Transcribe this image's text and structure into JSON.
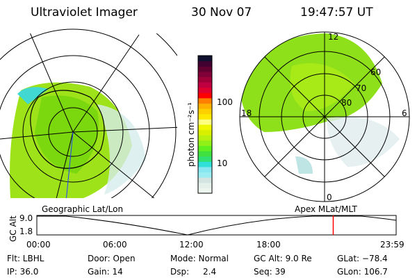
{
  "header": {
    "instrument": "Ultraviolet Imager",
    "date": "30 Nov 07",
    "time": "19:47:57 UT"
  },
  "colorbar": {
    "label": "photon cm⁻²s⁻¹",
    "ticks": [
      "100",
      "10"
    ],
    "colors": [
      "#eef6f0",
      "#e4f0ea",
      "#d4e4e0",
      "#9aeef2",
      "#88e6f0",
      "#30e0d8",
      "#30e070",
      "#40e040",
      "#60f020",
      "#90f018",
      "#b8f010",
      "#d8f000",
      "#f0f800",
      "#ffff80",
      "#ffe800",
      "#ffd000",
      "#ffb000",
      "#ff8000",
      "#ff0000",
      "#e00030",
      "#c00040",
      "#a00038",
      "#800038",
      "#600030",
      "#400030",
      "#101030"
    ]
  },
  "left_map": {
    "label": "Geographic Lat/Lon"
  },
  "right_map": {
    "label": "Apex MLat/MLT",
    "mlt_labels": {
      "top": "12",
      "bottom": "0",
      "left": "18",
      "right": "6"
    },
    "lat_labels": [
      "60",
      "70",
      "80"
    ]
  },
  "altitude_plot": {
    "ylabel": "GC Alt",
    "yticks": [
      "9.0",
      "1.8"
    ],
    "xticks": [
      "00:00",
      "06:00",
      "12:00",
      "18:00",
      "23:59"
    ],
    "current_time": "19:47",
    "marker_color": "#ff0000"
  },
  "status": {
    "filter": "Flt: LBHL",
    "ip": "IP: 36.0",
    "door": "Door: Open",
    "gain": "Gain: 14",
    "mode": "Mode: Normal",
    "dsp_label": "Dsp:",
    "dsp_value": "2.4",
    "gc_alt": "GC Alt: 9.0 Re",
    "seq": "Seq: 39",
    "glat": "GLat: −78.4",
    "glon": "GLon: 106.7"
  }
}
